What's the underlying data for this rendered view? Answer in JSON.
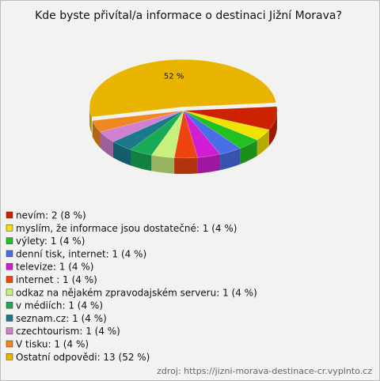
{
  "chart_data": {
    "type": "pie",
    "title": "Kde byste přivítal/a informace o destinaci Jižní Morava?",
    "categories": [
      "nevím: 2 (8 %)",
      "myslím, že informace jsou dostatečné: 1 (4 %)",
      "výlety: 1 (4 %)",
      "denní tisk, internet: 1 (4 %)",
      "televize: 1 (4 %)",
      "internet : 1 (4 %)",
      "odkaz na nějakém zpravodajském serveru: 1 (4 %)",
      "v médiích: 1 (4 %)",
      "seznam.cz: 1 (4 %)",
      "czechtourism: 1 (4 %)",
      "V tisku: 1 (4 %)",
      "Ostatní odpovědi: 13 (52 %)"
    ],
    "values": [
      8,
      4,
      4,
      4,
      4,
      4,
      4,
      4,
      4,
      4,
      4,
      52
    ],
    "value_labels": [
      null,
      null,
      null,
      null,
      null,
      null,
      null,
      null,
      null,
      null,
      null,
      "52 %"
    ],
    "colors": [
      "#cc2200",
      "#f2e200",
      "#22c022",
      "#4a6ee8",
      "#d21ed2",
      "#ee4411",
      "#c8f07c",
      "#18aa55",
      "#1a7a8a",
      "#d080d0",
      "#f08820",
      "#e8b400"
    ],
    "legend": "bottom-left",
    "source": "zdroj: https://jizni-morava-destinace-cr.vyplnto.cz"
  }
}
